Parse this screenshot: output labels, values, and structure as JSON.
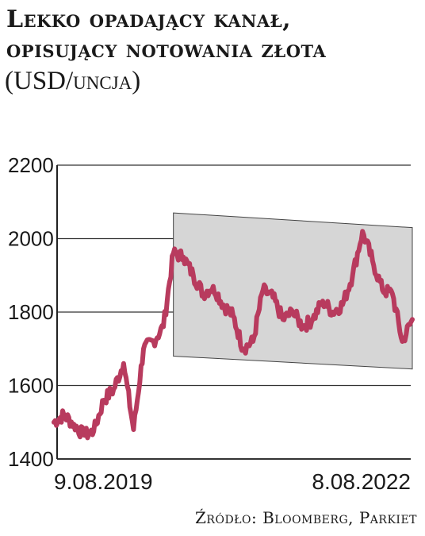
{
  "header": {
    "title_line1": "Lekko opadający kanał,",
    "title_line2": "opisujący notowania złota",
    "subtitle": "(USD/uncja)"
  },
  "footer": {
    "source": "Źródło: Bloomberg, Parkiet"
  },
  "chart_data": {
    "type": "line",
    "title": "Lekko opadający kanał, opisujący notowania złota",
    "subtitle": "(USD/uncja)",
    "ylim": [
      1400,
      2200
    ],
    "y_ticks": [
      2200,
      2000,
      1800,
      1600,
      1400
    ],
    "grid": true,
    "x_labels": [
      "9.08.2019",
      "8.08.2022"
    ],
    "x": [
      "2019-08",
      "2019-09",
      "2019-10",
      "2019-11",
      "2019-12",
      "2020-01",
      "2020-02",
      "2020-03",
      "2020-04",
      "2020-05",
      "2020-06",
      "2020-07",
      "2020-08",
      "2020-09",
      "2020-10",
      "2020-11",
      "2020-12",
      "2021-01",
      "2021-02",
      "2021-03",
      "2021-04",
      "2021-05",
      "2021-06",
      "2021-07",
      "2021-08",
      "2021-09",
      "2021-10",
      "2021-11",
      "2021-12",
      "2022-01",
      "2022-02",
      "2022-03",
      "2022-04",
      "2022-05",
      "2022-06",
      "2022-07",
      "2022-08"
    ],
    "series": [
      {
        "color": "#b83b5e",
        "values": [
          1500,
          1520,
          1495,
          1465,
          1475,
          1560,
          1590,
          1660,
          1480,
          1700,
          1720,
          1760,
          1960,
          1950,
          1900,
          1850,
          1870,
          1820,
          1790,
          1700,
          1720,
          1860,
          1840,
          1780,
          1800,
          1760,
          1780,
          1830,
          1800,
          1820,
          1900,
          2020,
          1940,
          1860,
          1850,
          1720,
          1780
        ]
      }
    ],
    "channel": {
      "color": "#d6d6d6",
      "upper": {
        "start": {
          "x": "2020-08",
          "y": 2070
        },
        "end": {
          "x": "2022-08",
          "y": 2030
        }
      },
      "lower": {
        "start": {
          "x": "2020-08",
          "y": 1680
        },
        "end": {
          "x": "2022-08",
          "y": 1645
        }
      }
    }
  }
}
